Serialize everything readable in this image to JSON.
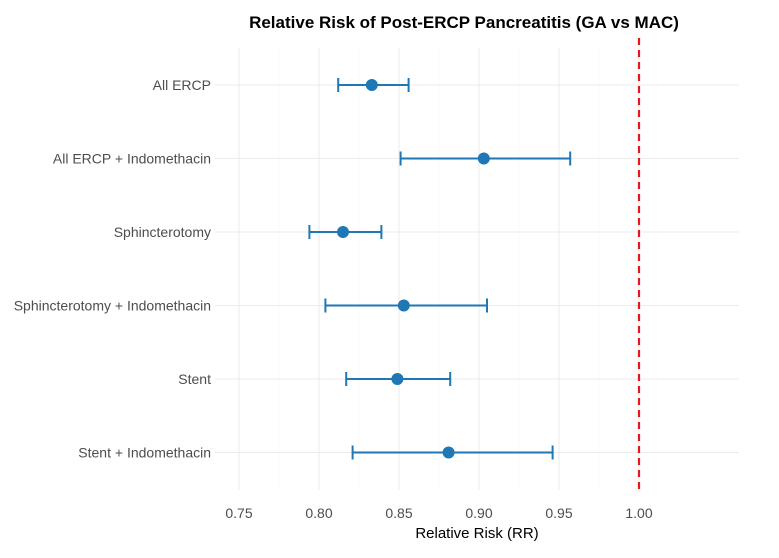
{
  "chart_data": {
    "type": "forest",
    "title": "Relative Risk of Post-ERCP Pancreatitis (GA vs MAC)",
    "xlabel": "Relative Risk (RR)",
    "ylabel": "",
    "xlim": [
      0.735,
      1.0625
    ],
    "xticks": [
      0.75,
      0.8,
      0.85,
      0.9,
      0.95,
      1.0
    ],
    "xtick_labels": [
      "0.75",
      "0.80",
      "0.85",
      "0.90",
      "0.95",
      "1.00"
    ],
    "reference_line": 1.0,
    "categories": [
      "All ERCP",
      "All ERCP + Indomethacin",
      "Sphincterotomy",
      "Sphincterotomy + Indomethacin",
      "Stent",
      "Stent + Indomethacin"
    ],
    "series": [
      {
        "estimate": [
          0.833,
          0.903,
          0.815,
          0.853,
          0.849,
          0.881
        ],
        "lower": [
          0.812,
          0.851,
          0.794,
          0.804,
          0.817,
          0.821
        ],
        "upper": [
          0.856,
          0.957,
          0.839,
          0.905,
          0.882,
          0.946
        ]
      }
    ],
    "colors": {
      "point": "#1f77b4",
      "reference": "#e31a1c",
      "grid": "#ebebeb"
    },
    "grid": true,
    "legend": "none"
  }
}
